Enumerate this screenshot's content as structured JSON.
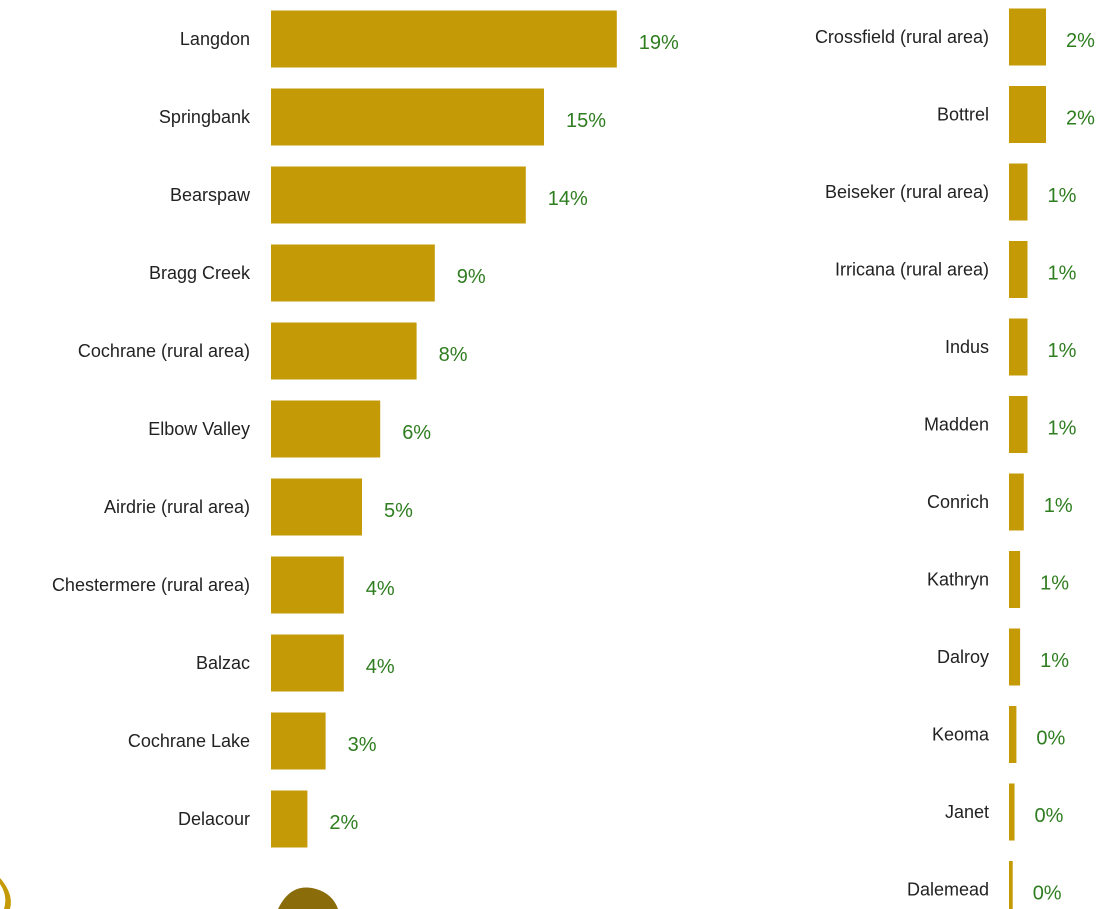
{
  "colors": {
    "bar": "#c49a06",
    "value_label": "#2e7d1f",
    "category_label": "#222222",
    "decoration_dark": "#8a6d0a"
  },
  "chart_data": [
    {
      "type": "bar",
      "orientation": "horizontal",
      "title": "",
      "xlabel": "",
      "ylabel": "",
      "value_unit": "%",
      "categories": [
        "Langdon",
        "Springbank",
        "Bearspaw",
        "Bragg Creek",
        "Cochrane (rural area)",
        "Elbow Valley",
        "Airdrie (rural area)",
        "Chestermere (rural area)",
        "Balzac",
        "Cochrane Lake",
        "Delacour"
      ],
      "values": [
        19,
        15,
        14,
        9,
        8,
        6,
        5,
        4,
        4,
        3,
        2
      ],
      "labels": [
        "19%",
        "15%",
        "14%",
        "9%",
        "8%",
        "6%",
        "5%",
        "4%",
        "4%",
        "3%",
        "2%"
      ]
    },
    {
      "type": "bar",
      "orientation": "horizontal",
      "title": "",
      "xlabel": "",
      "ylabel": "",
      "value_unit": "%",
      "categories": [
        "Crossfield (rural area)",
        "Bottrel",
        "Beiseker (rural area)",
        "Irricana (rural area)",
        "Indus",
        "Madden",
        "Conrich",
        "Kathryn",
        "Dalroy",
        "Keoma",
        "Janet",
        "Dalemead"
      ],
      "values": [
        2,
        2,
        1,
        1,
        1,
        1,
        0.8,
        0.6,
        0.6,
        0.4,
        0.3,
        0.2
      ],
      "labels": [
        "2%",
        "2%",
        "1%",
        "1%",
        "1%",
        "1%",
        "1%",
        "1%",
        "1%",
        "0%",
        "0%",
        "0%"
      ]
    }
  ]
}
